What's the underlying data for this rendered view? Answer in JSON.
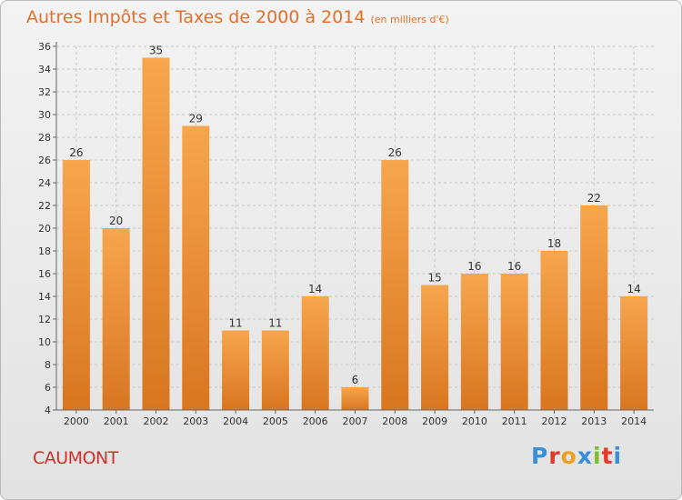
{
  "title": "Autres Impôts et Taxes de 2000 à 2014",
  "unit": "(en milliers d'€)",
  "town": "CAUMONT",
  "logo": {
    "letters": [
      "P",
      "r",
      "o",
      "x",
      "i",
      "t",
      "i"
    ],
    "colors": [
      "#3a8fd9",
      "#e2392b",
      "#f0a020",
      "#3a8fd9",
      "#7dbb2f",
      "#e2392b",
      "#3a8fd9"
    ]
  },
  "colors": {
    "bar_light": "#f7a64e",
    "bar_dark": "#d97620",
    "title": "#e0702a",
    "town": "#d22e2e"
  },
  "chart_data": {
    "type": "bar",
    "categories": [
      "2000",
      "2001",
      "2002",
      "2003",
      "2004",
      "2005",
      "2006",
      "2007",
      "2008",
      "2009",
      "2010",
      "2011",
      "2012",
      "2013",
      "2014"
    ],
    "values": [
      26,
      20,
      35,
      29,
      11,
      11,
      14,
      6,
      26,
      15,
      16,
      16,
      18,
      22,
      14
    ],
    "ylim": [
      4,
      36
    ],
    "yticks": [
      4,
      6,
      8,
      10,
      12,
      14,
      16,
      18,
      20,
      22,
      24,
      26,
      28,
      30,
      32,
      34,
      36
    ],
    "grid": true,
    "title": "Autres Impôts et Taxes de 2000 à 2014",
    "xlabel": "",
    "ylabel": ""
  }
}
